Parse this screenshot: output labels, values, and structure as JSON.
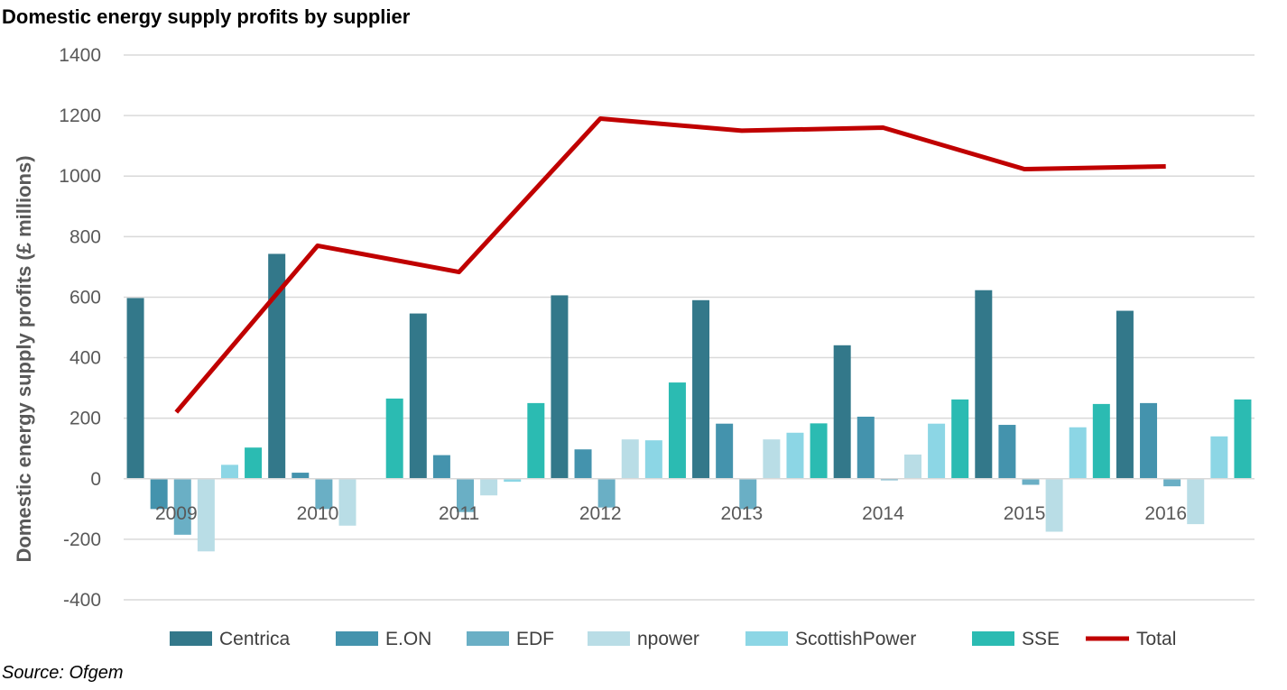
{
  "title": "Domestic energy supply profits by supplier",
  "source": "Source: Ofgem",
  "chart_data": {
    "type": "bar",
    "title": "Domestic energy supply profits by supplier",
    "xlabel": "",
    "ylabel": "Domestic energy supply profits (£ millions)",
    "ylim": [
      -400,
      1400
    ],
    "yticks": [
      -400,
      -200,
      0,
      200,
      400,
      600,
      800,
      1000,
      1200,
      1400
    ],
    "categories": [
      "2009",
      "2010",
      "2011",
      "2012",
      "2013",
      "2014",
      "2015",
      "2016"
    ],
    "grid": true,
    "legend": "bottom",
    "series": [
      {
        "name": "Centrica",
        "type": "bar",
        "color": "#33788A",
        "values": [
          597,
          743,
          546,
          606,
          590,
          441,
          623,
          555
        ]
      },
      {
        "name": "E.ON",
        "type": "bar",
        "color": "#4493AD",
        "values": [
          -100,
          20,
          78,
          97,
          182,
          205,
          178,
          250
        ]
      },
      {
        "name": "EDF",
        "type": "bar",
        "color": "#6AAFC5",
        "values": [
          -185,
          -100,
          -110,
          -95,
          -100,
          -5,
          -20,
          -25
        ]
      },
      {
        "name": "npower",
        "type": "bar",
        "color": "#B9DDE6",
        "values": [
          -240,
          -155,
          -55,
          130,
          130,
          80,
          -175,
          -150
        ]
      },
      {
        "name": "ScottishPower",
        "type": "bar",
        "color": "#8CD6E5",
        "values": [
          46,
          0,
          -10,
          127,
          152,
          182,
          170,
          140
        ]
      },
      {
        "name": "SSE",
        "type": "bar",
        "color": "#2BBBB2",
        "values": [
          103,
          265,
          250,
          318,
          183,
          262,
          247,
          262
        ]
      },
      {
        "name": "Total",
        "type": "line",
        "color": "#C00000",
        "values": [
          220,
          770,
          683,
          1190,
          1150,
          1160,
          1023,
          1032
        ]
      }
    ]
  }
}
